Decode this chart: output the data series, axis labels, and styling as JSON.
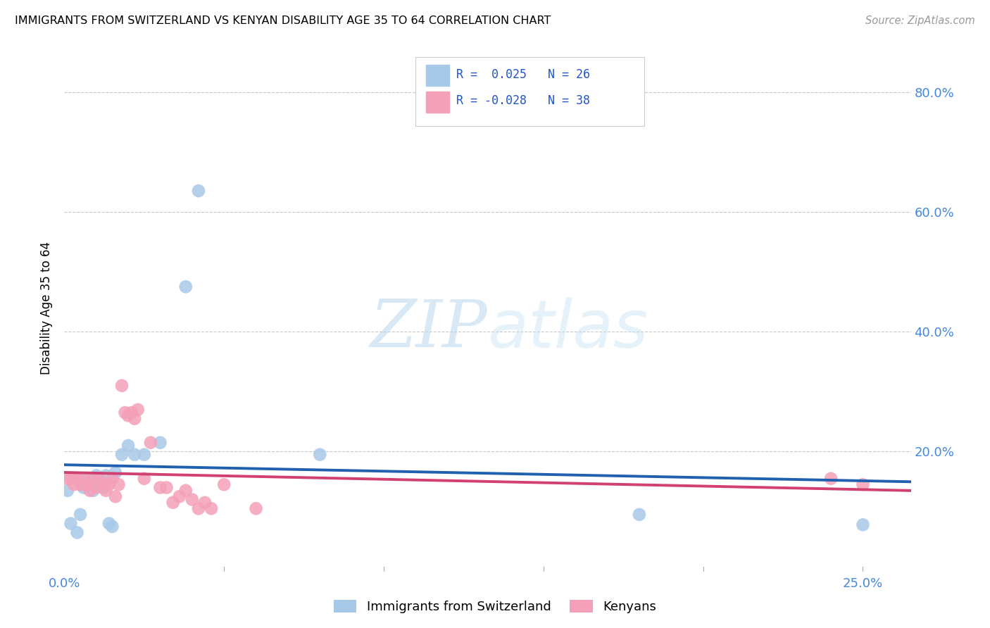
{
  "title": "IMMIGRANTS FROM SWITZERLAND VS KENYAN DISABILITY AGE 35 TO 64 CORRELATION CHART",
  "source": "Source: ZipAtlas.com",
  "ylabel": "Disability Age 35 to 64",
  "xlim": [
    0.0,
    0.265
  ],
  "ylim": [
    0.0,
    0.88
  ],
  "watermark": "ZIPatlas",
  "blue_color": "#a8c8e8",
  "pink_color": "#f4a0b8",
  "trendline_blue": "#2060b0",
  "trendline_pink": "#d04070",
  "swiss_x": [
    0.001,
    0.002,
    0.003,
    0.004,
    0.005,
    0.006,
    0.007,
    0.008,
    0.009,
    0.01,
    0.011,
    0.012,
    0.013,
    0.014,
    0.015,
    0.016,
    0.018,
    0.02,
    0.022,
    0.025,
    0.03,
    0.038,
    0.042,
    0.08,
    0.18,
    0.25
  ],
  "swiss_y": [
    0.135,
    0.08,
    0.155,
    0.065,
    0.095,
    0.14,
    0.155,
    0.155,
    0.135,
    0.16,
    0.155,
    0.14,
    0.16,
    0.08,
    0.075,
    0.165,
    0.195,
    0.21,
    0.195,
    0.195,
    0.215,
    0.475,
    0.635,
    0.195,
    0.095,
    0.078
  ],
  "kenyan_x": [
    0.001,
    0.002,
    0.003,
    0.004,
    0.005,
    0.006,
    0.007,
    0.008,
    0.009,
    0.01,
    0.011,
    0.012,
    0.013,
    0.014,
    0.015,
    0.016,
    0.017,
    0.018,
    0.019,
    0.02,
    0.021,
    0.022,
    0.023,
    0.025,
    0.027,
    0.03,
    0.032,
    0.034,
    0.036,
    0.038,
    0.04,
    0.042,
    0.044,
    0.046,
    0.05,
    0.06,
    0.24,
    0.25
  ],
  "kenyan_y": [
    0.155,
    0.155,
    0.145,
    0.155,
    0.145,
    0.155,
    0.145,
    0.135,
    0.155,
    0.14,
    0.155,
    0.145,
    0.135,
    0.145,
    0.155,
    0.125,
    0.145,
    0.31,
    0.265,
    0.26,
    0.265,
    0.255,
    0.27,
    0.155,
    0.215,
    0.14,
    0.14,
    0.115,
    0.125,
    0.135,
    0.12,
    0.105,
    0.115,
    0.105,
    0.145,
    0.105,
    0.155,
    0.145
  ],
  "legend_r1": "R =  0.025",
  "legend_n1": "N = 26",
  "legend_r2": "R = -0.028",
  "legend_n2": "N = 38"
}
